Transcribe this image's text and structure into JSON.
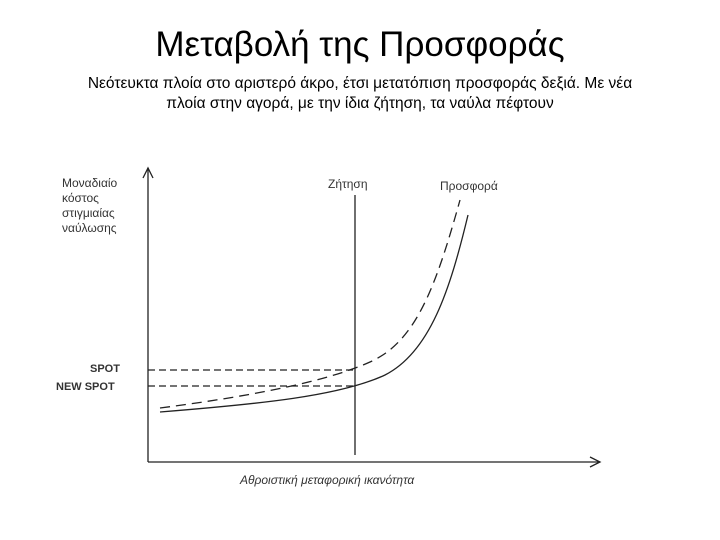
{
  "header": {
    "title": "Μεταβολή της Προσφοράς",
    "subtitle_lines": [
      "Νεότευκτα πλοία στο αριστερό άκρο, έτσι μετατόπιση προσφοράς δεξιά. Με νέα",
      "πλοία στην αγορά, με την ίδια ζήτηση, τα ναύλα πέφτουν"
    ]
  },
  "diagram": {
    "y_axis_label_lines": [
      "Μοναδιαίο",
      "κόστος",
      "στιγμιαίας",
      "ναύλωσης"
    ],
    "x_axis_label": "Αθροιστική μεταφορική ικανότητα",
    "demand_label": "Ζήτηση",
    "supply_label": "Προσφορά",
    "spot_label": "SPOT",
    "new_spot_label": "NEW SPOT"
  }
}
